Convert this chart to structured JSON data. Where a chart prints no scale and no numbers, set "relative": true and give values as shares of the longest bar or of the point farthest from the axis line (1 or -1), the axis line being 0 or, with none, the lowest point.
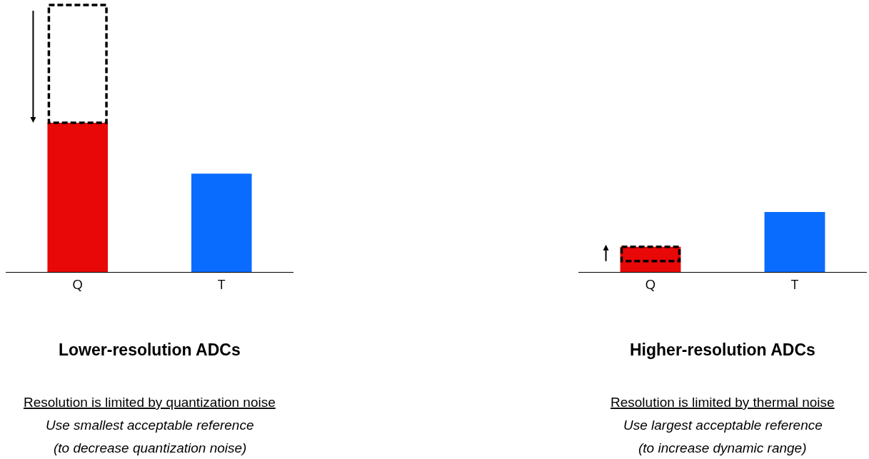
{
  "chart_data": [
    {
      "type": "bar",
      "title": "Lower-resolution ADCs",
      "relative": true,
      "categories": [
        "Q",
        "T"
      ],
      "values": [
        1,
        0.66
      ],
      "colors": [
        "#e80808",
        "#0a6cff"
      ],
      "annotations": [
        "Resolution is limited by quantization noise",
        "Use smallest acceptable reference",
        "(to decrease quantization noise)"
      ]
    },
    {
      "type": "bar",
      "title": "Higher-resolution ADCs",
      "relative": true,
      "categories": [
        "Q",
        "T"
      ],
      "values": [
        0.42,
        1
      ],
      "colors": [
        "#e80808",
        "#0a6cff"
      ],
      "annotations": [
        "Resolution is limited by thermal noise",
        "Use largest acceptable reference",
        "(to increase dynamic range)"
      ]
    }
  ]
}
